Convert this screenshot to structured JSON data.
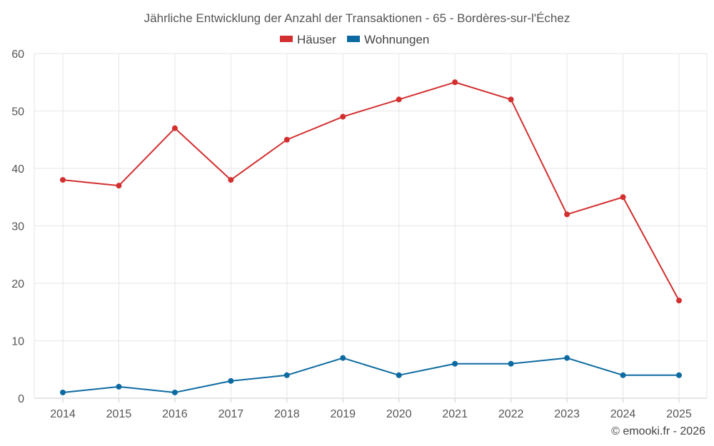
{
  "chart_data": {
    "type": "line",
    "title": "Jährliche Entwicklung der Anzahl der Transaktionen - 65 - Bordères-sur-l'Échez",
    "categories": [
      "2014",
      "2015",
      "2016",
      "2017",
      "2018",
      "2019",
      "2020",
      "2021",
      "2022",
      "2023",
      "2024",
      "2025"
    ],
    "series": [
      {
        "name": "Häuser",
        "color": "#d32f2f",
        "values": [
          38,
          37,
          47,
          38,
          45,
          49,
          52,
          55,
          52,
          32,
          35,
          17
        ]
      },
      {
        "name": "Wohnungen",
        "color": "#0d6aa1",
        "values": [
          1,
          2,
          1,
          3,
          4,
          7,
          4,
          6,
          6,
          7,
          4,
          4
        ]
      }
    ],
    "ylim": [
      0,
      60
    ],
    "yticks": [
      0,
      10,
      20,
      30,
      40,
      50,
      60
    ],
    "xlabel": "",
    "ylabel": "",
    "grid": true,
    "legend_position": "top-center"
  },
  "credit": "© emooki.fr - 2026"
}
